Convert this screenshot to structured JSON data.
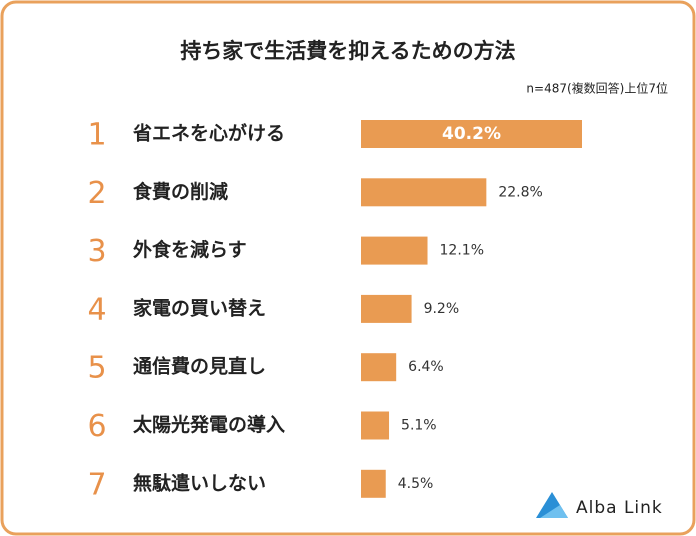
{
  "chart_data": {
    "type": "bar",
    "orientation": "horizontal",
    "title": "持ち家で生活費を抑えるための方法",
    "subtitle": "n=487(複数回答)上位7位",
    "ranks": [
      1,
      2,
      3,
      4,
      5,
      6,
      7
    ],
    "categories": [
      "省エネを心がける",
      "食費の削減",
      "外食を減らす",
      "家電の買い替え",
      "通信費の見直し",
      "太陽光発電の導入",
      "無駄遣いしない"
    ],
    "values": [
      40.2,
      22.8,
      12.1,
      9.2,
      6.4,
      5.1,
      4.5
    ],
    "value_labels": [
      "40.2%",
      "22.8%",
      "12.1%",
      "9.2%",
      "6.4%",
      "5.1%",
      "4.5%"
    ],
    "color": "#e99b52",
    "rank_color": "#e8914a",
    "logo": "Alba Link"
  }
}
